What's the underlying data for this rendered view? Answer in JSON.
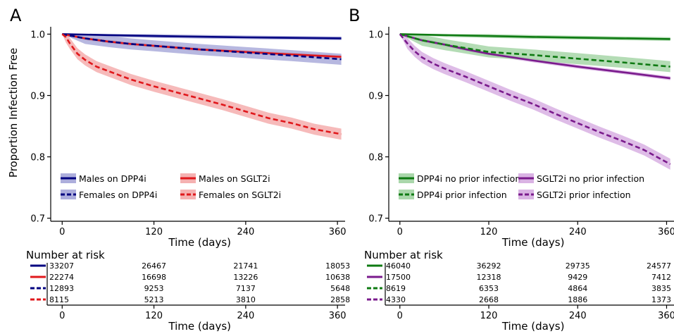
{
  "chart_data": [
    {
      "type": "line",
      "panel_label": "A",
      "xlabel": "Time (days)",
      "ylabel": "Proportion Infection Free",
      "xlim": [
        -15,
        370
      ],
      "ylim": [
        0.695,
        1.012
      ],
      "xticks": [
        0,
        120,
        240,
        360
      ],
      "yticks": [
        0.7,
        0.8,
        0.9,
        1.0
      ],
      "ytick_labels": [
        "0.7",
        "0.8",
        "0.9",
        "1.0"
      ],
      "legend_position": "bottom-left",
      "series": [
        {
          "name": "Males on DPP4i",
          "color": "#000080",
          "dashed": false,
          "band_color": "#9fa0d6",
          "x": [
            0,
            60,
            120,
            180,
            240,
            300,
            365
          ],
          "y": [
            1.0,
            0.9985,
            0.997,
            0.9958,
            0.9948,
            0.994,
            0.9932
          ]
        },
        {
          "name": "Males on SGLT2i",
          "color": "#e0181c",
          "dashed": false,
          "band_color": "#f3a3a3",
          "x": [
            0,
            30,
            60,
            90,
            120,
            180,
            240,
            300,
            365
          ],
          "y": [
            1.0,
            0.993,
            0.988,
            0.984,
            0.981,
            0.975,
            0.971,
            0.967,
            0.963
          ]
        },
        {
          "name": "Females on DPP4i",
          "color": "#000080",
          "dashed": true,
          "band_color": "#9fa0d6",
          "x": [
            0,
            30,
            60,
            90,
            120,
            180,
            240,
            300,
            365
          ],
          "y": [
            1.0,
            0.993,
            0.988,
            0.984,
            0.981,
            0.975,
            0.97,
            0.965,
            0.959
          ]
        },
        {
          "name": "Females on SGLT2i",
          "color": "#e0181c",
          "dashed": true,
          "band_color": "#f3a3a3",
          "x": [
            0,
            5,
            10,
            20,
            30,
            45,
            60,
            90,
            120,
            150,
            180,
            210,
            240,
            270,
            300,
            330,
            365
          ],
          "y": [
            1.0,
            0.995,
            0.985,
            0.968,
            0.958,
            0.947,
            0.94,
            0.926,
            0.915,
            0.905,
            0.895,
            0.885,
            0.874,
            0.863,
            0.855,
            0.845,
            0.837
          ]
        }
      ],
      "risk_table": {
        "title": "Number at risk",
        "xlabel": "Time (days)",
        "xticks": [
          0,
          120,
          240,
          360
        ],
        "rows": [
          [
            "33207",
            "26467",
            "21741",
            "18053"
          ],
          [
            "22274",
            "16698",
            "13226",
            "10638"
          ],
          [
            "12893",
            "9253",
            "7137",
            "5648"
          ],
          [
            "8115",
            "5213",
            "3810",
            "2858"
          ]
        ]
      }
    },
    {
      "type": "line",
      "panel_label": "B",
      "xlabel": "Time (days)",
      "ylabel": "",
      "xlim": [
        -15,
        370
      ],
      "ylim": [
        0.695,
        1.012
      ],
      "xticks": [
        0,
        120,
        240,
        360
      ],
      "yticks": [
        0.7,
        0.8,
        0.9,
        1.0
      ],
      "ytick_labels": [
        "0.7",
        "0.8",
        "0.9",
        "1.0"
      ],
      "legend_position": "bottom-left",
      "series": [
        {
          "name": "DPP4i no prior infection",
          "color": "#0e7a12",
          "dashed": false,
          "band_color": "#9bd09c",
          "x": [
            0,
            60,
            120,
            180,
            240,
            300,
            365
          ],
          "y": [
            1.0,
            0.9985,
            0.997,
            0.9955,
            0.9943,
            0.9932,
            0.992
          ]
        },
        {
          "name": "SGLT2i no prior infection",
          "color": "#7a1a8c",
          "dashed": false,
          "band_color": "#d3a6df",
          "x": [
            0,
            30,
            60,
            90,
            120,
            180,
            240,
            300,
            365
          ],
          "y": [
            1.0,
            0.99,
            0.983,
            0.975,
            0.968,
            0.957,
            0.947,
            0.938,
            0.928
          ]
        },
        {
          "name": "DPP4i prior infection",
          "color": "#0e7a12",
          "dashed": true,
          "band_color": "#9bd09c",
          "x": [
            0,
            30,
            60,
            90,
            120,
            180,
            240,
            300,
            365
          ],
          "y": [
            1.0,
            0.99,
            0.983,
            0.977,
            0.971,
            0.966,
            0.96,
            0.954,
            0.947
          ]
        },
        {
          "name": "SGLT2i prior infection",
          "color": "#7a1a8c",
          "dashed": true,
          "band_color": "#d3a6df",
          "x": [
            0,
            10,
            20,
            30,
            45,
            60,
            90,
            120,
            150,
            180,
            210,
            240,
            270,
            300,
            330,
            365
          ],
          "y": [
            1.0,
            0.985,
            0.972,
            0.962,
            0.952,
            0.944,
            0.93,
            0.915,
            0.9,
            0.886,
            0.87,
            0.855,
            0.84,
            0.826,
            0.811,
            0.788
          ]
        }
      ],
      "risk_table": {
        "title": "Number at risk",
        "xlabel": "Time (days)",
        "xticks": [
          0,
          120,
          240,
          360
        ],
        "rows": [
          [
            "46040",
            "36292",
            "29735",
            "24577"
          ],
          [
            "17500",
            "12318",
            "9429",
            "7412"
          ],
          [
            "8619",
            "6353",
            "4864",
            "3835"
          ],
          [
            "4330",
            "2668",
            "1886",
            "1373"
          ]
        ]
      }
    }
  ]
}
